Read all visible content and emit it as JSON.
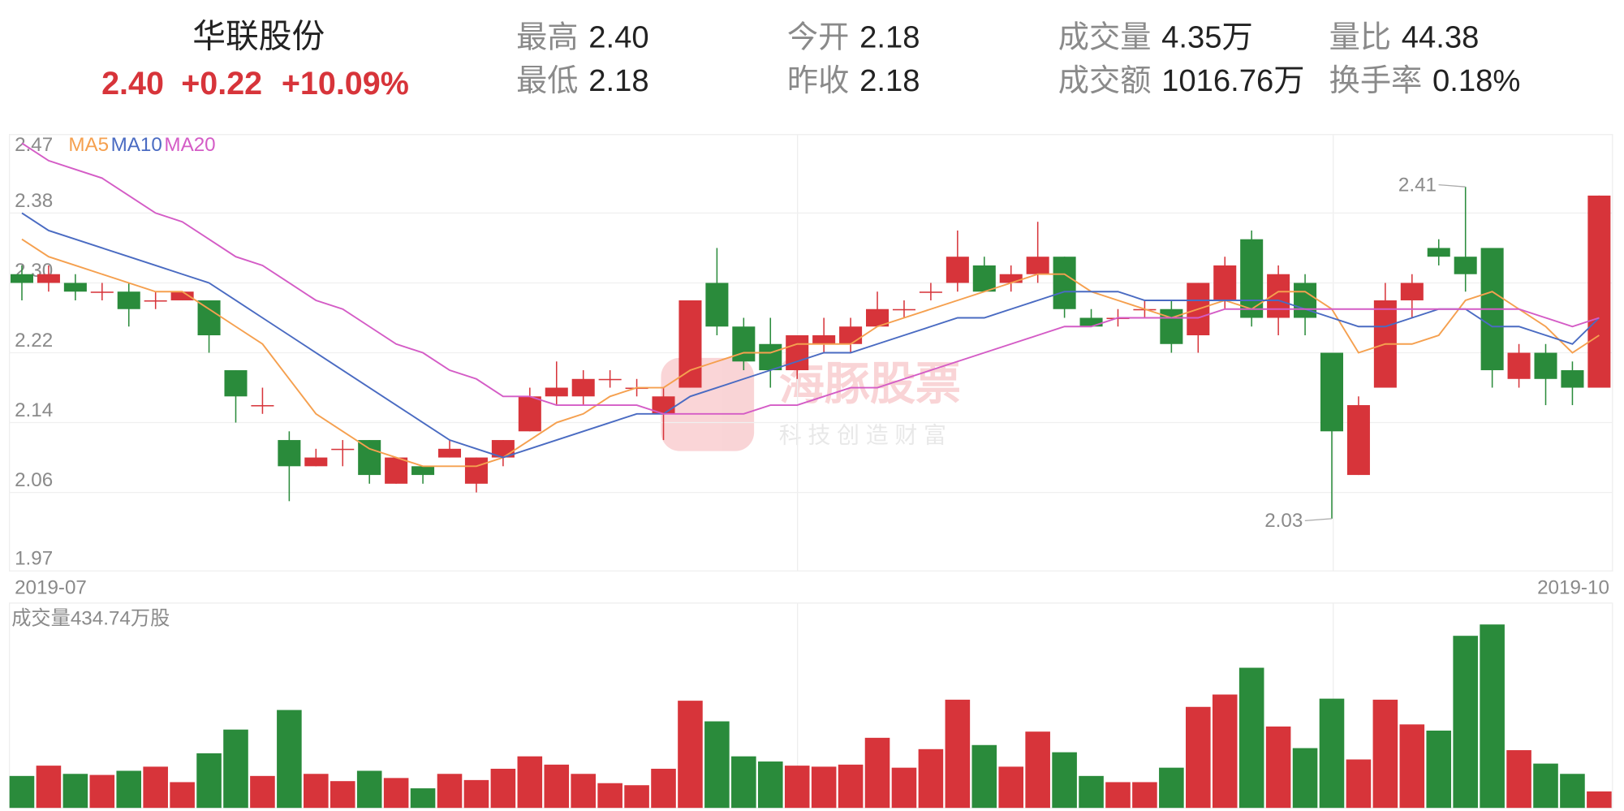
{
  "header": {
    "name": "华联股份",
    "price": "2.40",
    "change": "+0.22",
    "change_pct": "+10.09%",
    "stats": [
      {
        "label": "最高",
        "value": "2.40"
      },
      {
        "label": "最低",
        "value": "2.18"
      },
      {
        "label": "今开",
        "value": "2.18"
      },
      {
        "label": "昨收",
        "value": "2.18"
      },
      {
        "label": "成交量",
        "value": "4.35万"
      },
      {
        "label": "成交额",
        "value": "1016.76万"
      },
      {
        "label": "量比",
        "value": "44.38"
      },
      {
        "label": "换手率",
        "value": "0.18%"
      }
    ]
  },
  "watermark": {
    "name": "海豚股票",
    "slogan": "科技创造财富"
  },
  "chart_data": [
    {
      "type": "candlestick",
      "up_color": "#d7343a",
      "down_color": "#2a8b3b",
      "grid": true,
      "categories": [
        "2019-07",
        null,
        null,
        null,
        null,
        null,
        null,
        null,
        null,
        null,
        null,
        null,
        null,
        null,
        null,
        null,
        null,
        null,
        null,
        null,
        null,
        null,
        null,
        null,
        null,
        null,
        null,
        null,
        null,
        null,
        null,
        null,
        null,
        null,
        null,
        null,
        null,
        null,
        null,
        null,
        null,
        null,
        null,
        null,
        null,
        null,
        null,
        null,
        null,
        null,
        null,
        null,
        null,
        null,
        null,
        null,
        null,
        null,
        null,
        "2019-10"
      ],
      "open": [
        2.31,
        2.3,
        2.3,
        2.29,
        2.29,
        2.28,
        2.28,
        2.28,
        2.2,
        2.16,
        2.12,
        2.09,
        2.11,
        2.12,
        2.07,
        2.09,
        2.1,
        2.07,
        2.1,
        2.13,
        2.17,
        2.17,
        2.19,
        2.18,
        2.15,
        2.18,
        2.3,
        2.25,
        2.23,
        2.2,
        2.23,
        2.23,
        2.25,
        2.27,
        2.29,
        2.3,
        2.32,
        2.3,
        2.31,
        2.33,
        2.26,
        2.26,
        2.27,
        2.27,
        2.24,
        2.28,
        2.35,
        2.26,
        2.3,
        2.22,
        2.08,
        2.18,
        2.28,
        2.34,
        2.33,
        2.34,
        2.19,
        2.22,
        2.2,
        2.18
      ],
      "close": [
        2.3,
        2.31,
        2.29,
        2.29,
        2.27,
        2.28,
        2.29,
        2.24,
        2.17,
        2.16,
        2.09,
        2.1,
        2.11,
        2.08,
        2.1,
        2.08,
        2.11,
        2.1,
        2.12,
        2.17,
        2.18,
        2.19,
        2.19,
        2.18,
        2.17,
        2.28,
        2.25,
        2.21,
        2.2,
        2.24,
        2.24,
        2.25,
        2.27,
        2.27,
        2.29,
        2.33,
        2.29,
        2.31,
        2.33,
        2.27,
        2.25,
        2.26,
        2.27,
        2.23,
        2.3,
        2.32,
        2.26,
        2.31,
        2.26,
        2.13,
        2.16,
        2.28,
        2.3,
        2.33,
        2.31,
        2.2,
        2.22,
        2.19,
        2.18,
        2.4
      ],
      "high": [
        2.32,
        2.32,
        2.31,
        2.3,
        2.3,
        2.29,
        2.29,
        2.28,
        2.2,
        2.18,
        2.13,
        2.11,
        2.12,
        2.12,
        2.1,
        2.09,
        2.12,
        2.1,
        2.12,
        2.18,
        2.21,
        2.2,
        2.2,
        2.19,
        2.18,
        2.28,
        2.34,
        2.26,
        2.26,
        2.24,
        2.26,
        2.26,
        2.29,
        2.28,
        2.3,
        2.36,
        2.33,
        2.32,
        2.37,
        2.33,
        2.27,
        2.27,
        2.28,
        2.28,
        2.3,
        2.33,
        2.36,
        2.32,
        2.31,
        2.22,
        2.17,
        2.3,
        2.31,
        2.35,
        2.41,
        2.34,
        2.23,
        2.23,
        2.21,
        2.4
      ],
      "low": [
        2.28,
        2.29,
        2.28,
        2.28,
        2.25,
        2.27,
        2.28,
        2.22,
        2.14,
        2.15,
        2.05,
        2.09,
        2.09,
        2.07,
        2.07,
        2.07,
        2.1,
        2.06,
        2.09,
        2.13,
        2.16,
        2.16,
        2.18,
        2.17,
        2.12,
        2.18,
        2.24,
        2.2,
        2.18,
        2.19,
        2.22,
        2.22,
        2.25,
        2.26,
        2.28,
        2.29,
        2.29,
        2.29,
        2.3,
        2.26,
        2.25,
        2.25,
        2.26,
        2.22,
        2.22,
        2.27,
        2.25,
        2.24,
        2.24,
        2.03,
        2.08,
        2.18,
        2.26,
        2.32,
        2.29,
        2.18,
        2.18,
        2.16,
        2.16,
        2.18
      ],
      "series": [
        {
          "name": "MA5",
          "color": "#f5a04f",
          "values": [
            2.35,
            2.33,
            2.32,
            2.31,
            2.3,
            2.29,
            2.29,
            2.27,
            2.25,
            2.23,
            2.19,
            2.15,
            2.13,
            2.11,
            2.1,
            2.09,
            2.09,
            2.09,
            2.1,
            2.12,
            2.14,
            2.15,
            2.17,
            2.18,
            2.18,
            2.2,
            2.21,
            2.22,
            2.22,
            2.23,
            2.23,
            2.23,
            2.25,
            2.26,
            2.27,
            2.28,
            2.29,
            2.3,
            2.31,
            2.31,
            2.29,
            2.28,
            2.27,
            2.26,
            2.27,
            2.28,
            2.27,
            2.29,
            2.29,
            2.27,
            2.22,
            2.23,
            2.23,
            2.24,
            2.28,
            2.29,
            2.27,
            2.25,
            2.22,
            2.24
          ]
        },
        {
          "name": "MA10",
          "color": "#4a6bc2",
          "values": [
            2.38,
            2.36,
            2.35,
            2.34,
            2.33,
            2.32,
            2.31,
            2.3,
            2.28,
            2.26,
            2.24,
            2.22,
            2.2,
            2.18,
            2.16,
            2.14,
            2.12,
            2.11,
            2.1,
            2.11,
            2.12,
            2.13,
            2.14,
            2.15,
            2.15,
            2.17,
            2.18,
            2.19,
            2.2,
            2.21,
            2.22,
            2.22,
            2.23,
            2.24,
            2.25,
            2.26,
            2.26,
            2.27,
            2.28,
            2.29,
            2.29,
            2.29,
            2.28,
            2.28,
            2.28,
            2.28,
            2.28,
            2.28,
            2.27,
            2.26,
            2.25,
            2.25,
            2.26,
            2.27,
            2.27,
            2.25,
            2.25,
            2.24,
            2.23,
            2.26
          ]
        },
        {
          "name": "MA20",
          "color": "#d45cc6",
          "values": [
            2.46,
            2.44,
            2.43,
            2.42,
            2.4,
            2.38,
            2.37,
            2.35,
            2.33,
            2.32,
            2.3,
            2.28,
            2.27,
            2.25,
            2.23,
            2.22,
            2.2,
            2.19,
            2.17,
            2.17,
            2.16,
            2.16,
            2.16,
            2.16,
            2.15,
            2.15,
            2.15,
            2.15,
            2.16,
            2.16,
            2.17,
            2.18,
            2.18,
            2.19,
            2.2,
            2.21,
            2.22,
            2.23,
            2.24,
            2.25,
            2.25,
            2.26,
            2.26,
            2.26,
            2.26,
            2.27,
            2.27,
            2.27,
            2.27,
            2.27,
            2.27,
            2.27,
            2.27,
            2.27,
            2.27,
            2.27,
            2.27,
            2.26,
            2.25,
            2.26
          ]
        }
      ],
      "ylim": [
        1.97,
        2.47
      ],
      "yticks": [
        2.47,
        2.38,
        {
          "value": 2.3,
          "label": "2.30"
        },
        2.22,
        2.14,
        2.06,
        1.97
      ]
    },
    {
      "type": "bar",
      "title": "成交量434.74万股",
      "values": [
        842,
        1114,
        897,
        869,
        978,
        1087,
        679,
        1440,
        2065,
        842,
        2581,
        897,
        706,
        978,
        788,
        516,
        897,
        734,
        1032,
        1359,
        1141,
        897,
        652,
        598,
        1032,
        2826,
        2282,
        1359,
        1223,
        1114,
        1087,
        1141,
        1848,
        1060,
        1549,
        2853,
        1657,
        1087,
        2011,
        1467,
        842,
        679,
        679,
        1060,
        2663,
        2989,
        3695,
        2146,
        1576,
        2880,
        1277,
        2853,
        2201,
        2038,
        4537,
        4836,
        1522,
        1168,
        897,
        434.74
      ],
      "ylim": [
        0,
        5400
      ]
    }
  ]
}
